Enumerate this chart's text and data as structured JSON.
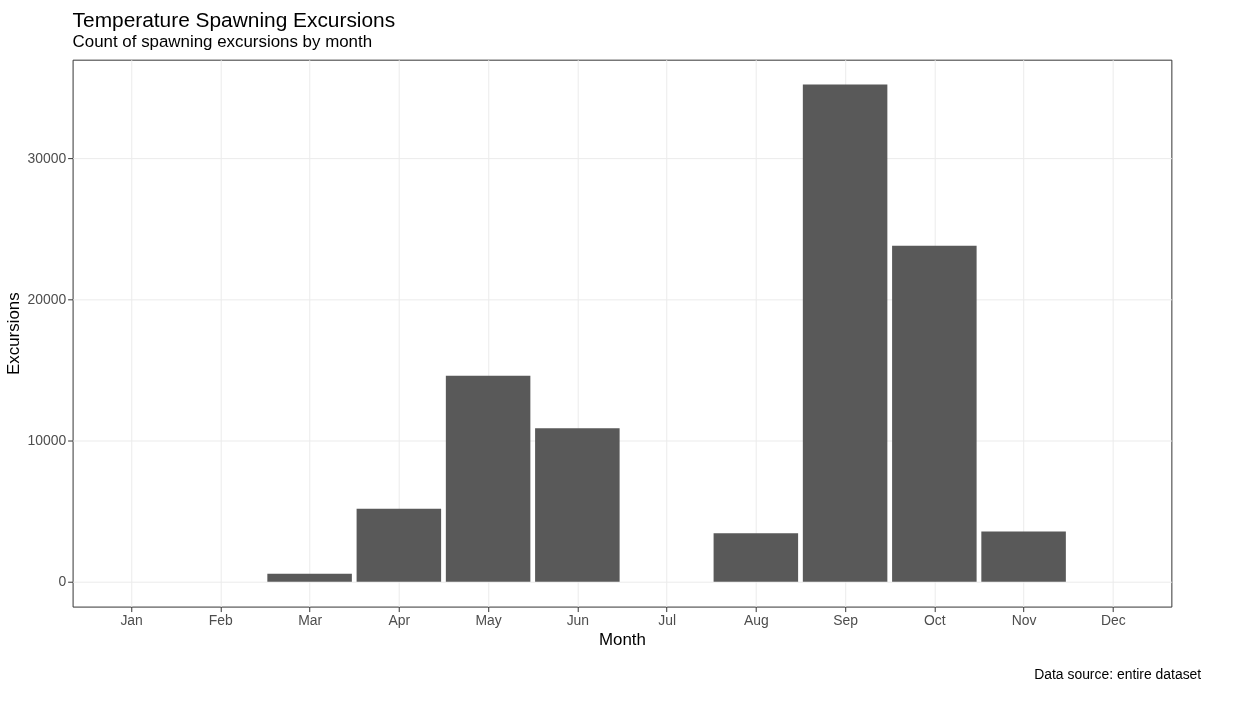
{
  "chart_data": {
    "type": "bar",
    "title": "Temperature Spawning Excursions",
    "subtitle": "Count of spawning excursions by month",
    "xlabel": "Month",
    "ylabel": "Excursions",
    "categories": [
      "Jan",
      "Feb",
      "Mar",
      "Apr",
      "May",
      "Jun",
      "Jul",
      "Aug",
      "Sep",
      "Oct",
      "Nov",
      "Dec"
    ],
    "values": [
      null,
      null,
      560,
      5160,
      14580,
      10870,
      null,
      3430,
      35210,
      23800,
      3550,
      null
    ],
    "color": "#595959",
    "ylim": [
      -1760,
      36970
    ],
    "yticks": [
      0,
      10000,
      20000,
      30000
    ],
    "grid": true,
    "annotations": [
      "Data source: entire dataset"
    ]
  }
}
